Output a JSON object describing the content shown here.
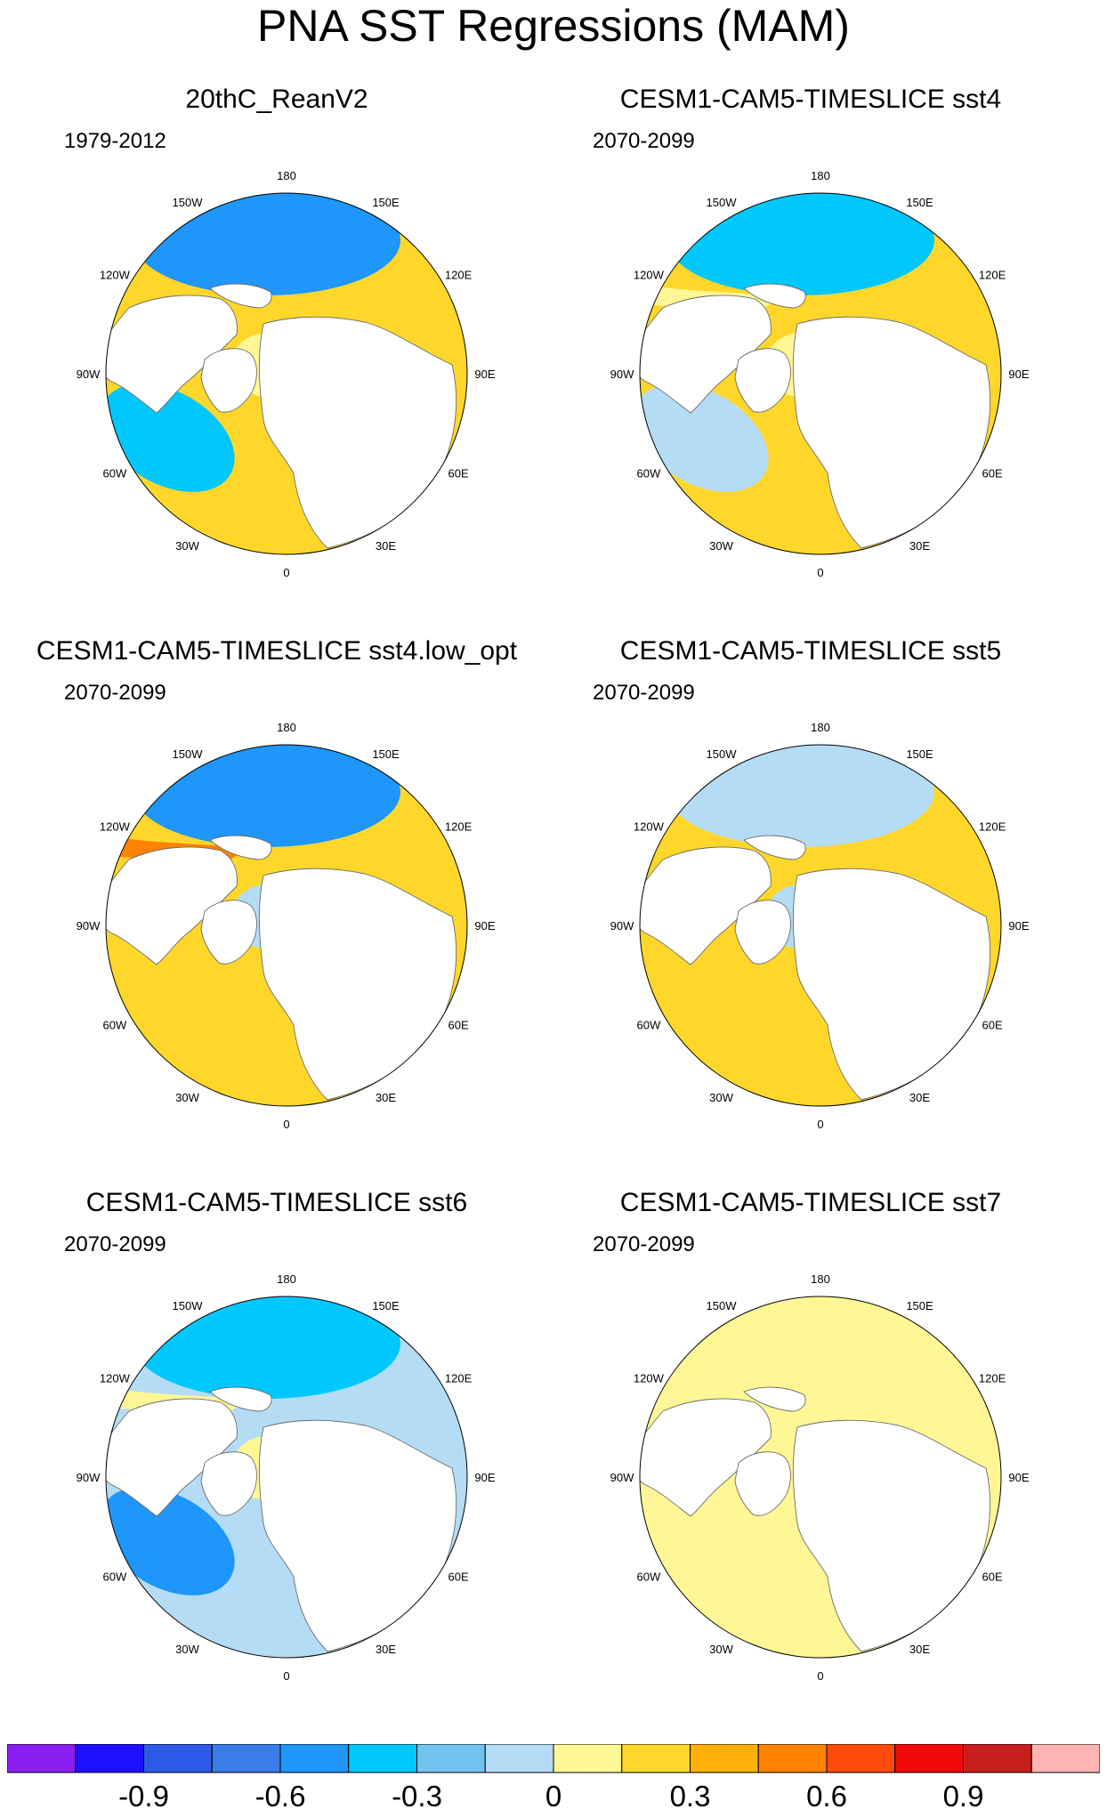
{
  "title": "PNA SST Regressions (MAM)",
  "longitude_labels": [
    "180",
    "150E",
    "120E",
    "90E",
    "60E",
    "30E",
    "0",
    "30W",
    "60W",
    "90W",
    "120W",
    "150W"
  ],
  "panels": [
    {
      "title": "20thC_ReanV2",
      "period": "1979-2012",
      "pattern": {
        "north_pacific": "strong-negative",
        "pacific_rim": "positive",
        "atlantic_west": "negative",
        "atlantic_subtropic": "positive",
        "arctic": "neutral-positive"
      }
    },
    {
      "title": "CESM1-CAM5-TIMESLICE sst4",
      "period": "2070-2099",
      "pattern": {
        "north_pacific": "negative",
        "pacific_rim": "neutral-positive",
        "atlantic_west": "neutral-negative",
        "atlantic_subtropic": "positive",
        "arctic": "neutral-positive"
      }
    },
    {
      "title": "CESM1-CAM5-TIMESLICE sst4.low_opt",
      "period": "2070-2099",
      "pattern": {
        "north_pacific": "strong-negative",
        "pacific_rim": "strong-positive",
        "atlantic_west": "positive",
        "atlantic_subtropic": "positive",
        "arctic": "neutral"
      }
    },
    {
      "title": "CESM1-CAM5-TIMESLICE sst5",
      "period": "2070-2099",
      "pattern": {
        "north_pacific": "neutral-negative",
        "pacific_rim": "positive",
        "atlantic_west": "positive",
        "atlantic_subtropic": "positive",
        "arctic": "neutral"
      }
    },
    {
      "title": "CESM1-CAM5-TIMESLICE sst6",
      "period": "2070-2099",
      "pattern": {
        "north_pacific": "negative",
        "pacific_rim": "neutral-positive",
        "atlantic_west": "strong-negative",
        "atlantic_subtropic": "neutral-negative",
        "arctic": "neutral-positive"
      }
    },
    {
      "title": "CESM1-CAM5-TIMESLICE sst7",
      "period": "2070-2099",
      "pattern": {
        "north_pacific": "neutral-positive",
        "pacific_rim": "neutral-positive",
        "atlantic_west": "neutral-positive",
        "atlantic_subtropic": "neutral-positive",
        "arctic": "neutral-positive"
      }
    }
  ],
  "colorbar": {
    "labels": [
      "-0.9",
      "-0.6",
      "-0.3",
      "0",
      "0.3",
      "0.6",
      "0.9"
    ],
    "colors": [
      "#8a1ef0",
      "#1e0fff",
      "#2d5ae6",
      "#3a7de8",
      "#1e96fa",
      "#00c8ff",
      "#73c3f0",
      "#b4dcf5",
      "#fff796",
      "#ffd72a",
      "#ffb00a",
      "#ff8200",
      "#ff4b0a",
      "#f00a0a",
      "#c81e1e",
      "#ffb4b4"
    ]
  }
}
